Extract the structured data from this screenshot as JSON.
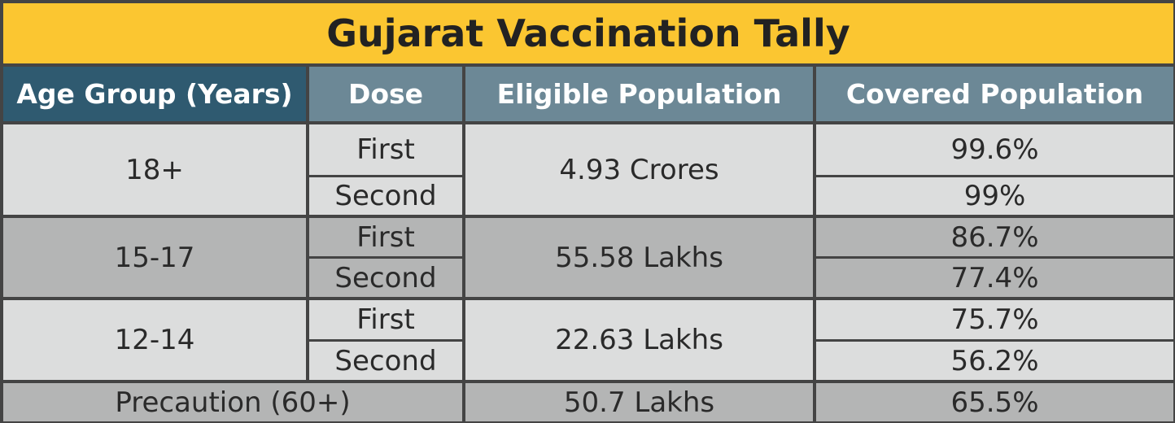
{
  "title": "Gujarat Vaccination Tally",
  "colors": {
    "title_bg": "#fbc631",
    "header_dark": "#2f5a70",
    "header_mid": "#6c8896",
    "row_light": "#dcdddd",
    "row_dark": "#b4b5b5",
    "border": "#444444"
  },
  "headers": [
    "Age Group (Years)",
    "Dose",
    "Eligible Population",
    "Covered Population"
  ],
  "rows": [
    {
      "age_group": "18+",
      "eligible": "4.93 Crores",
      "doses": [
        {
          "dose": "First",
          "covered": "99.6%"
        },
        {
          "dose": "Second",
          "covered": "99%"
        }
      ]
    },
    {
      "age_group": "15-17",
      "eligible": "55.58 Lakhs",
      "doses": [
        {
          "dose": "First",
          "covered": "86.7%"
        },
        {
          "dose": "Second",
          "covered": "77.4%"
        }
      ]
    },
    {
      "age_group": "12-14",
      "eligible": "22.63 Lakhs",
      "doses": [
        {
          "dose": "First",
          "covered": "75.7%"
        },
        {
          "dose": "Second",
          "covered": "56.2%"
        }
      ]
    }
  ],
  "precaution": {
    "label": "Precaution (60+)",
    "eligible": "50.7 Lakhs",
    "covered": "65.5%"
  }
}
